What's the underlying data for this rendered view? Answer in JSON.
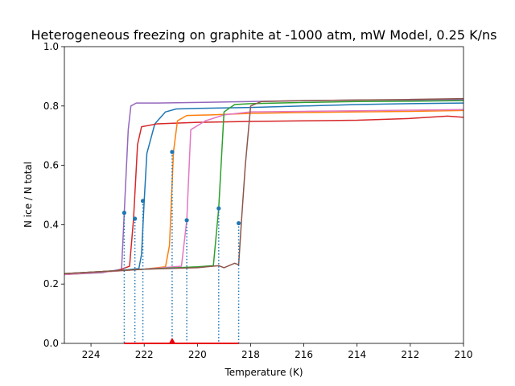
{
  "chart_data": {
    "type": "line",
    "title": "Heterogeneous freezing on graphite at -1000 atm, mW Model, 0.25 K/ns",
    "xlabel": "Temperature (K)",
    "ylabel": "N ice / N total",
    "xlim": [
      225,
      210
    ],
    "ylim": [
      0.0,
      1.0
    ],
    "x_inverted": true,
    "grid": false,
    "legend": "none",
    "xticks": [
      224,
      222,
      220,
      218,
      216,
      214,
      212,
      210
    ],
    "xtick_labels": [
      "224",
      "222",
      "220",
      "218",
      "216",
      "214",
      "212",
      "210"
    ],
    "yticks": [
      0.0,
      0.2,
      0.4,
      0.6,
      0.8,
      1.0
    ],
    "ytick_labels": [
      "0.0",
      "0.2",
      "0.4",
      "0.6",
      "0.8",
      "1.0"
    ],
    "series": [
      {
        "color": "#9467bd",
        "points": [
          [
            225,
            0.232
          ],
          [
            223.6,
            0.238
          ],
          [
            222.85,
            0.25
          ],
          [
            222.75,
            0.44
          ],
          [
            222.6,
            0.72
          ],
          [
            222.5,
            0.8
          ],
          [
            222.3,
            0.81
          ],
          [
            221.5,
            0.81
          ],
          [
            220,
            0.812
          ],
          [
            218,
            0.815
          ],
          [
            216,
            0.818
          ],
          [
            214,
            0.82
          ],
          [
            212,
            0.82
          ],
          [
            210,
            0.822
          ]
        ]
      },
      {
        "color": "#1f77b4",
        "points": [
          [
            225,
            0.232
          ],
          [
            223,
            0.245
          ],
          [
            222.2,
            0.252
          ],
          [
            222.1,
            0.3
          ],
          [
            222.0,
            0.48
          ],
          [
            221.9,
            0.64
          ],
          [
            221.6,
            0.74
          ],
          [
            221.2,
            0.78
          ],
          [
            220.8,
            0.79
          ],
          [
            220,
            0.792
          ],
          [
            218,
            0.795
          ],
          [
            216,
            0.8
          ],
          [
            214,
            0.805
          ],
          [
            212,
            0.808
          ],
          [
            210,
            0.81
          ]
        ]
      },
      {
        "color": "#d62728",
        "points": [
          [
            225,
            0.235
          ],
          [
            223,
            0.245
          ],
          [
            222.55,
            0.26
          ],
          [
            222.4,
            0.42
          ],
          [
            222.25,
            0.67
          ],
          [
            222.1,
            0.73
          ],
          [
            221.5,
            0.74
          ],
          [
            220,
            0.745
          ],
          [
            218,
            0.748
          ],
          [
            216,
            0.75
          ],
          [
            214,
            0.752
          ],
          [
            212,
            0.758
          ],
          [
            210.6,
            0.766
          ],
          [
            210,
            0.762
          ]
        ]
      },
      {
        "color": "#ff7f0e",
        "points": [
          [
            225,
            0.232
          ],
          [
            222,
            0.25
          ],
          [
            221.2,
            0.258
          ],
          [
            221.05,
            0.33
          ],
          [
            220.9,
            0.645
          ],
          [
            220.75,
            0.75
          ],
          [
            220.4,
            0.768
          ],
          [
            219.5,
            0.77
          ],
          [
            218,
            0.775
          ],
          [
            216,
            0.778
          ],
          [
            214,
            0.78
          ],
          [
            212,
            0.782
          ],
          [
            210,
            0.785
          ]
        ]
      },
      {
        "color": "#e377c2",
        "points": [
          [
            225,
            0.232
          ],
          [
            222,
            0.25
          ],
          [
            220.6,
            0.26
          ],
          [
            220.4,
            0.415
          ],
          [
            220.25,
            0.72
          ],
          [
            219.7,
            0.75
          ],
          [
            219,
            0.77
          ],
          [
            218,
            0.78
          ],
          [
            216,
            0.782
          ],
          [
            214,
            0.784
          ],
          [
            212,
            0.786
          ],
          [
            210,
            0.788
          ]
        ]
      },
      {
        "color": "#2ca02c",
        "points": [
          [
            225,
            0.235
          ],
          [
            222,
            0.25
          ],
          [
            220,
            0.258
          ],
          [
            219.4,
            0.262
          ],
          [
            219.2,
            0.455
          ],
          [
            219.0,
            0.78
          ],
          [
            218.6,
            0.805
          ],
          [
            218,
            0.808
          ],
          [
            216,
            0.812
          ],
          [
            214,
            0.815
          ],
          [
            212,
            0.816
          ],
          [
            210,
            0.818
          ]
        ]
      },
      {
        "color": "#8c564b",
        "points": [
          [
            225,
            0.235
          ],
          [
            222,
            0.25
          ],
          [
            220,
            0.255
          ],
          [
            219.2,
            0.262
          ],
          [
            219.0,
            0.255
          ],
          [
            218.6,
            0.27
          ],
          [
            218.45,
            0.265
          ],
          [
            218.35,
            0.405
          ],
          [
            218.2,
            0.6
          ],
          [
            218.0,
            0.8
          ],
          [
            217.6,
            0.815
          ],
          [
            216,
            0.818
          ],
          [
            214,
            0.82
          ],
          [
            212,
            0.822
          ],
          [
            210,
            0.825
          ]
        ]
      }
    ],
    "marker_points": [
      {
        "x": 222.75,
        "y": 0.44
      },
      {
        "x": 222.35,
        "y": 0.42
      },
      {
        "x": 222.05,
        "y": 0.48
      },
      {
        "x": 220.95,
        "y": 0.645
      },
      {
        "x": 220.4,
        "y": 0.415
      },
      {
        "x": 219.2,
        "y": 0.455
      },
      {
        "x": 218.45,
        "y": 0.405
      }
    ],
    "marker_color": "#1f77b4",
    "dotted_color": "#1f77b4",
    "mean_marker": {
      "x": 220.95,
      "y": 0.0,
      "color": "#e8000b"
    },
    "mean_range": [
      222.75,
      218.45
    ]
  }
}
